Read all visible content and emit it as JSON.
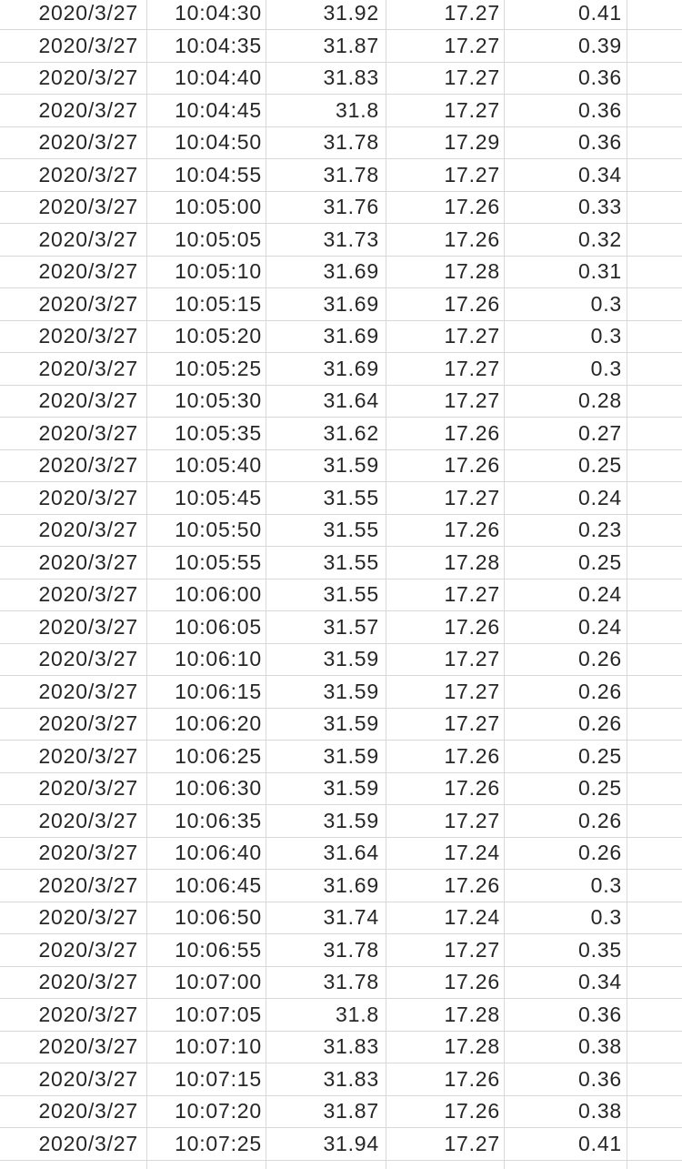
{
  "app": {
    "view": "spreadsheet-grid-crop",
    "header_row_visible": false
  },
  "colors": {
    "background": "#ffffff",
    "grid_line": "#d8d8d8",
    "cell_text": "#262626"
  },
  "table": {
    "column_keys": [
      "date",
      "time",
      "value1",
      "value2",
      "value3",
      "empty"
    ],
    "rows": [
      [
        "2020/3/27",
        "10:04:30",
        "31.92",
        "17.27",
        "0.41",
        ""
      ],
      [
        "2020/3/27",
        "10:04:35",
        "31.87",
        "17.27",
        "0.39",
        ""
      ],
      [
        "2020/3/27",
        "10:04:40",
        "31.83",
        "17.27",
        "0.36",
        ""
      ],
      [
        "2020/3/27",
        "10:04:45",
        "31.8",
        "17.27",
        "0.36",
        ""
      ],
      [
        "2020/3/27",
        "10:04:50",
        "31.78",
        "17.29",
        "0.36",
        ""
      ],
      [
        "2020/3/27",
        "10:04:55",
        "31.78",
        "17.27",
        "0.34",
        ""
      ],
      [
        "2020/3/27",
        "10:05:00",
        "31.76",
        "17.26",
        "0.33",
        ""
      ],
      [
        "2020/3/27",
        "10:05:05",
        "31.73",
        "17.26",
        "0.32",
        ""
      ],
      [
        "2020/3/27",
        "10:05:10",
        "31.69",
        "17.28",
        "0.31",
        ""
      ],
      [
        "2020/3/27",
        "10:05:15",
        "31.69",
        "17.26",
        "0.3",
        ""
      ],
      [
        "2020/3/27",
        "10:05:20",
        "31.69",
        "17.27",
        "0.3",
        ""
      ],
      [
        "2020/3/27",
        "10:05:25",
        "31.69",
        "17.27",
        "0.3",
        ""
      ],
      [
        "2020/3/27",
        "10:05:30",
        "31.64",
        "17.27",
        "0.28",
        ""
      ],
      [
        "2020/3/27",
        "10:05:35",
        "31.62",
        "17.26",
        "0.27",
        ""
      ],
      [
        "2020/3/27",
        "10:05:40",
        "31.59",
        "17.26",
        "0.25",
        ""
      ],
      [
        "2020/3/27",
        "10:05:45",
        "31.55",
        "17.27",
        "0.24",
        ""
      ],
      [
        "2020/3/27",
        "10:05:50",
        "31.55",
        "17.26",
        "0.23",
        ""
      ],
      [
        "2020/3/27",
        "10:05:55",
        "31.55",
        "17.28",
        "0.25",
        ""
      ],
      [
        "2020/3/27",
        "10:06:00",
        "31.55",
        "17.27",
        "0.24",
        ""
      ],
      [
        "2020/3/27",
        "10:06:05",
        "31.57",
        "17.26",
        "0.24",
        ""
      ],
      [
        "2020/3/27",
        "10:06:10",
        "31.59",
        "17.27",
        "0.26",
        ""
      ],
      [
        "2020/3/27",
        "10:06:15",
        "31.59",
        "17.27",
        "0.26",
        ""
      ],
      [
        "2020/3/27",
        "10:06:20",
        "31.59",
        "17.27",
        "0.26",
        ""
      ],
      [
        "2020/3/27",
        "10:06:25",
        "31.59",
        "17.26",
        "0.25",
        ""
      ],
      [
        "2020/3/27",
        "10:06:30",
        "31.59",
        "17.26",
        "0.25",
        ""
      ],
      [
        "2020/3/27",
        "10:06:35",
        "31.59",
        "17.27",
        "0.26",
        ""
      ],
      [
        "2020/3/27",
        "10:06:40",
        "31.64",
        "17.24",
        "0.26",
        ""
      ],
      [
        "2020/3/27",
        "10:06:45",
        "31.69",
        "17.26",
        "0.3",
        ""
      ],
      [
        "2020/3/27",
        "10:06:50",
        "31.74",
        "17.24",
        "0.3",
        ""
      ],
      [
        "2020/3/27",
        "10:06:55",
        "31.78",
        "17.27",
        "0.35",
        ""
      ],
      [
        "2020/3/27",
        "10:07:00",
        "31.78",
        "17.26",
        "0.34",
        ""
      ],
      [
        "2020/3/27",
        "10:07:05",
        "31.8",
        "17.28",
        "0.36",
        ""
      ],
      [
        "2020/3/27",
        "10:07:10",
        "31.83",
        "17.28",
        "0.38",
        ""
      ],
      [
        "2020/3/27",
        "10:07:15",
        "31.83",
        "17.26",
        "0.36",
        ""
      ],
      [
        "2020/3/27",
        "10:07:20",
        "31.87",
        "17.26",
        "0.38",
        ""
      ],
      [
        "2020/3/27",
        "10:07:25",
        "31.94",
        "17.27",
        "0.41",
        ""
      ]
    ]
  }
}
